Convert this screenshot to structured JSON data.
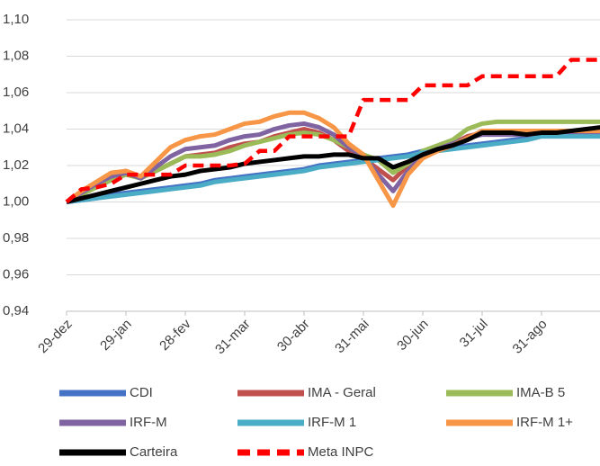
{
  "chart_data": {
    "type": "line",
    "categories": [
      "29-dez",
      null,
      null,
      null,
      "29-jan",
      null,
      null,
      null,
      "28-fev",
      null,
      null,
      null,
      "31-mar",
      null,
      null,
      null,
      "30-abr",
      null,
      null,
      null,
      "31-mai",
      null,
      null,
      null,
      "30-jun",
      null,
      null,
      null,
      "31-jul",
      null,
      null,
      null,
      "31-ago",
      null,
      null,
      null,
      null,
      null,
      null,
      null,
      null
    ],
    "ylim": [
      0.94,
      1.1
    ],
    "yticks": [
      {
        "value": 0.94,
        "label": "0,94"
      },
      {
        "value": 0.96,
        "label": "0,96"
      },
      {
        "value": 0.98,
        "label": "0,98"
      },
      {
        "value": 1.0,
        "label": "1,00"
      },
      {
        "value": 1.02,
        "label": "1,02"
      },
      {
        "value": 1.04,
        "label": "1,04"
      },
      {
        "value": 1.06,
        "label": "1,06"
      },
      {
        "value": 1.08,
        "label": "1,08"
      },
      {
        "value": 1.1,
        "label": "1,10"
      }
    ],
    "grid": true,
    "legend": "bottom",
    "series": [
      {
        "name": "CDI",
        "color": "#4472c4",
        "dashed": false,
        "values": [
          1.0,
          1.001,
          1.002,
          1.004,
          1.005,
          1.006,
          1.007,
          1.008,
          1.009,
          1.01,
          1.012,
          1.013,
          1.014,
          1.015,
          1.016,
          1.017,
          1.018,
          1.02,
          1.021,
          1.022,
          1.023,
          1.024,
          1.025,
          1.026,
          1.028,
          1.029,
          1.03,
          1.031,
          1.032,
          1.033,
          1.034,
          1.035,
          1.037,
          1.037,
          1.037,
          1.037,
          1.037,
          1.037,
          1.037,
          1.037,
          1.037
        ]
      },
      {
        "name": "IMA - Geral",
        "color": "#c0504d",
        "dashed": false,
        "values": [
          1.0,
          1.005,
          1.01,
          1.015,
          1.017,
          1.014,
          1.017,
          1.021,
          1.025,
          1.026,
          1.027,
          1.03,
          1.032,
          1.033,
          1.036,
          1.038,
          1.04,
          1.038,
          1.034,
          1.028,
          1.024,
          1.018,
          1.012,
          1.02,
          1.027,
          1.03,
          1.032,
          1.036,
          1.038,
          1.038,
          1.038,
          1.038,
          1.038,
          1.038,
          1.038,
          1.038,
          1.038,
          1.038,
          1.038,
          1.038,
          1.038
        ]
      },
      {
        "name": "IMA-B 5",
        "color": "#9bbb59",
        "dashed": false,
        "values": [
          1.0,
          1.004,
          1.008,
          1.012,
          1.015,
          1.013,
          1.017,
          1.021,
          1.025,
          1.025,
          1.026,
          1.028,
          1.031,
          1.033,
          1.035,
          1.037,
          1.038,
          1.037,
          1.034,
          1.03,
          1.026,
          1.023,
          1.016,
          1.021,
          1.028,
          1.031,
          1.034,
          1.04,
          1.043,
          1.044,
          1.044,
          1.044,
          1.044,
          1.044,
          1.044,
          1.044,
          1.044,
          1.044,
          1.044,
          1.044,
          1.044
        ]
      },
      {
        "name": "IRF-M",
        "color": "#8064a2",
        "dashed": false,
        "values": [
          1.0,
          1.005,
          1.01,
          1.014,
          1.016,
          1.013,
          1.019,
          1.025,
          1.029,
          1.03,
          1.031,
          1.034,
          1.036,
          1.037,
          1.04,
          1.042,
          1.043,
          1.041,
          1.037,
          1.03,
          1.025,
          1.015,
          1.006,
          1.017,
          1.026,
          1.029,
          1.032,
          1.035,
          1.037,
          1.037,
          1.037,
          1.037,
          1.037,
          1.037,
          1.037,
          1.037,
          1.037,
          1.037,
          1.037,
          1.037,
          1.037
        ]
      },
      {
        "name": "IRF-M 1",
        "color": "#4bacc6",
        "dashed": false,
        "values": [
          1.0,
          1.001,
          1.002,
          1.003,
          1.004,
          1.005,
          1.006,
          1.007,
          1.008,
          1.009,
          1.011,
          1.012,
          1.013,
          1.014,
          1.015,
          1.016,
          1.017,
          1.019,
          1.02,
          1.021,
          1.022,
          1.023,
          1.024,
          1.025,
          1.027,
          1.028,
          1.029,
          1.03,
          1.031,
          1.032,
          1.033,
          1.034,
          1.036,
          1.036,
          1.036,
          1.036,
          1.036,
          1.036,
          1.036,
          1.036,
          1.036
        ]
      },
      {
        "name": "IRF-M 1+",
        "color": "#f79646",
        "dashed": false,
        "values": [
          1.0,
          1.006,
          1.011,
          1.016,
          1.017,
          1.014,
          1.022,
          1.03,
          1.034,
          1.036,
          1.037,
          1.04,
          1.043,
          1.044,
          1.047,
          1.049,
          1.049,
          1.046,
          1.041,
          1.032,
          1.026,
          1.012,
          0.998,
          1.015,
          1.024,
          1.028,
          1.031,
          1.035,
          1.039,
          1.039,
          1.039,
          1.039,
          1.039,
          1.039,
          1.039,
          1.039,
          1.039,
          1.039,
          1.039,
          1.039,
          1.039
        ]
      },
      {
        "name": "Carteira",
        "color": "#000000",
        "dashed": false,
        "values": [
          1.0,
          1.002,
          1.004,
          1.006,
          1.008,
          1.01,
          1.012,
          1.014,
          1.015,
          1.017,
          1.018,
          1.019,
          1.021,
          1.022,
          1.023,
          1.024,
          1.025,
          1.025,
          1.026,
          1.026,
          1.024,
          1.024,
          1.019,
          1.022,
          1.026,
          1.029,
          1.031,
          1.034,
          1.038,
          1.038,
          1.038,
          1.037,
          1.038,
          1.038,
          1.039,
          1.04,
          1.041,
          1.042,
          1.043,
          1.045,
          1.047
        ]
      },
      {
        "name": "Meta INPC",
        "color": "#ff0000",
        "dashed": true,
        "values": [
          1.0,
          1.007,
          1.008,
          1.01,
          1.015,
          1.015,
          1.015,
          1.015,
          1.02,
          1.02,
          1.02,
          1.02,
          1.021,
          1.028,
          1.028,
          1.036,
          1.036,
          1.036,
          1.036,
          1.036,
          1.056,
          1.056,
          1.056,
          1.056,
          1.064,
          1.064,
          1.064,
          1.064,
          1.069,
          1.069,
          1.069,
          1.069,
          1.069,
          1.069,
          1.078,
          1.078,
          1.078,
          1.078,
          1.078,
          1.078,
          1.078
        ]
      }
    ]
  }
}
